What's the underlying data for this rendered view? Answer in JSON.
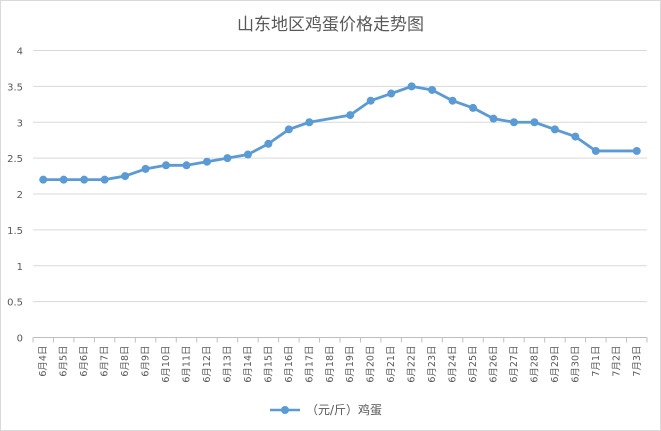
{
  "chart_data": {
    "type": "line",
    "title": "山东地区鸡蛋价格走势图",
    "categories": [
      "6月4日",
      "6月5日",
      "6月6日",
      "6月7日",
      "6月8日",
      "6月9日",
      "6月10日",
      "6月11日",
      "6月12日",
      "6月13日",
      "6月14日",
      "6月15日",
      "6月16日",
      "6月17日",
      "6月18日",
      "6月19日",
      "6月20日",
      "6月21日",
      "6月22日",
      "6月23日",
      "6月24日",
      "6月25日",
      "6月26日",
      "6月27日",
      "6月28日",
      "6月29日",
      "6月30日",
      "7月1日",
      "7月2日",
      "7月3日"
    ],
    "series": [
      {
        "name": "（元/斤）鸡蛋",
        "color": "#5b9bd5",
        "values": [
          2.2,
          2.2,
          2.2,
          2.2,
          2.25,
          2.35,
          2.4,
          2.4,
          2.45,
          2.5,
          2.55,
          2.7,
          2.9,
          3.0,
          null,
          3.1,
          3.3,
          3.4,
          3.5,
          3.45,
          3.3,
          3.2,
          3.05,
          3.0,
          3.0,
          2.9,
          2.8,
          2.6,
          null,
          2.6
        ]
      }
    ],
    "yticks": [
      "0",
      "0.5",
      "1",
      "1.5",
      "2",
      "2.5",
      "3",
      "3.5",
      "4"
    ],
    "ylim": [
      0,
      4
    ],
    "grid": true,
    "legend": "bottom"
  }
}
